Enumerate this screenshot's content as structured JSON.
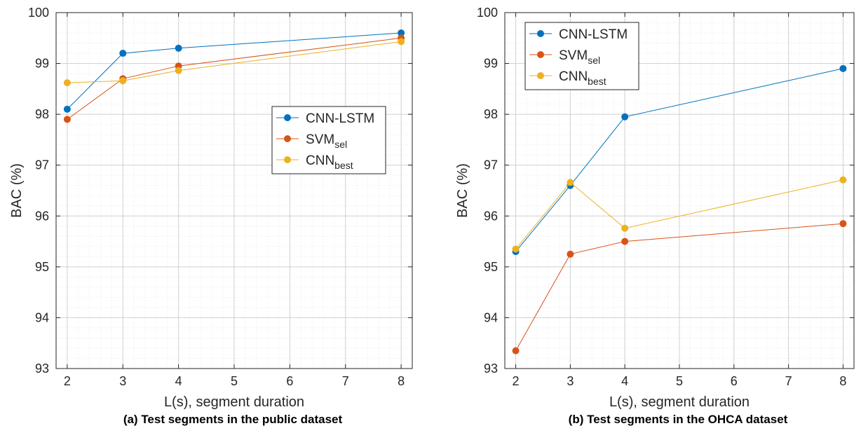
{
  "chart_data": [
    {
      "type": "line",
      "caption": "(a) Test segments in the public dataset",
      "xlabel": "L(s), segment duration",
      "ylabel": "BAC (%)",
      "xlim": [
        1.8,
        8.2
      ],
      "ylim": [
        93,
        100
      ],
      "xticks": [
        "2",
        "3",
        "4",
        "5",
        "6",
        "7",
        "8"
      ],
      "yticks": [
        "93",
        "94",
        "95",
        "96",
        "97",
        "98",
        "99",
        "100"
      ],
      "grid": true,
      "legend_position": "center-right",
      "series": [
        {
          "name": "CNN-LSTM",
          "name_main": "CNN-LSTM",
          "name_sub": "",
          "color": "#0072BD",
          "x": [
            2,
            3,
            4,
            8
          ],
          "y": [
            98.1,
            99.2,
            99.3,
            99.6
          ]
        },
        {
          "name": "SVMsel",
          "name_main": "SVM",
          "name_sub": "sel",
          "color": "#D95319",
          "x": [
            2,
            3,
            4,
            8
          ],
          "y": [
            97.9,
            98.7,
            98.95,
            99.5
          ]
        },
        {
          "name": "CNNbest",
          "name_main": "CNN",
          "name_sub": "best",
          "color": "#EDB120",
          "x": [
            2,
            3,
            4,
            8
          ],
          "y": [
            98.62,
            98.66,
            98.86,
            99.43
          ]
        }
      ]
    },
    {
      "type": "line",
      "caption": "(b) Test segments in the OHCA dataset",
      "xlabel": "L(s), segment duration",
      "ylabel": "BAC (%)",
      "xlim": [
        1.8,
        8.2
      ],
      "ylim": [
        93,
        100
      ],
      "xticks": [
        "2",
        "3",
        "4",
        "5",
        "6",
        "7",
        "8"
      ],
      "yticks": [
        "93",
        "94",
        "95",
        "96",
        "97",
        "98",
        "99",
        "100"
      ],
      "grid": true,
      "legend_position": "top-left",
      "series": [
        {
          "name": "CNN-LSTM",
          "name_main": "CNN-LSTM",
          "name_sub": "",
          "color": "#0072BD",
          "x": [
            2,
            3,
            4,
            8
          ],
          "y": [
            95.3,
            96.6,
            97.95,
            98.9
          ]
        },
        {
          "name": "SVMsel",
          "name_main": "SVM",
          "name_sub": "sel",
          "color": "#D95319",
          "x": [
            2,
            3,
            4,
            8
          ],
          "y": [
            93.35,
            95.25,
            95.5,
            95.85
          ]
        },
        {
          "name": "CNNbest",
          "name_main": "CNN",
          "name_sub": "best",
          "color": "#EDB120",
          "x": [
            2,
            3,
            4,
            8
          ],
          "y": [
            95.35,
            96.66,
            95.76,
            96.71
          ]
        }
      ]
    }
  ]
}
